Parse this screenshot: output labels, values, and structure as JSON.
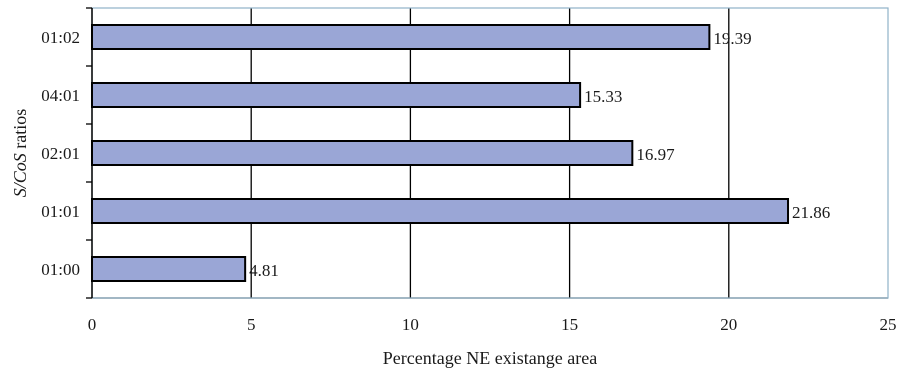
{
  "chart_data": {
    "type": "bar",
    "orientation": "horizontal",
    "categories": [
      "01:00",
      "01:01",
      "02:01",
      "04:01",
      "01:02"
    ],
    "values": [
      4.81,
      21.86,
      16.97,
      15.33,
      19.39
    ],
    "value_labels": [
      "4.81",
      "21.86",
      "16.97",
      "15.33",
      "19.39"
    ],
    "xlabel": "Percentage NE existange area",
    "ylabel": {
      "prefix": "S/CoS",
      "suffix": " ratios"
    },
    "xlim": [
      0,
      25
    ],
    "x_ticks": [
      0,
      5,
      10,
      15,
      20,
      25
    ],
    "x_tick_labels": [
      "0",
      "5",
      "10",
      "15",
      "20",
      "25"
    ],
    "grid": "vertical",
    "legend": "none",
    "colors": {
      "bar_fill": "#9aa6d6",
      "bar_stroke": "#000000",
      "grid": "#000000",
      "plot_border": "#8fb2c9"
    }
  }
}
